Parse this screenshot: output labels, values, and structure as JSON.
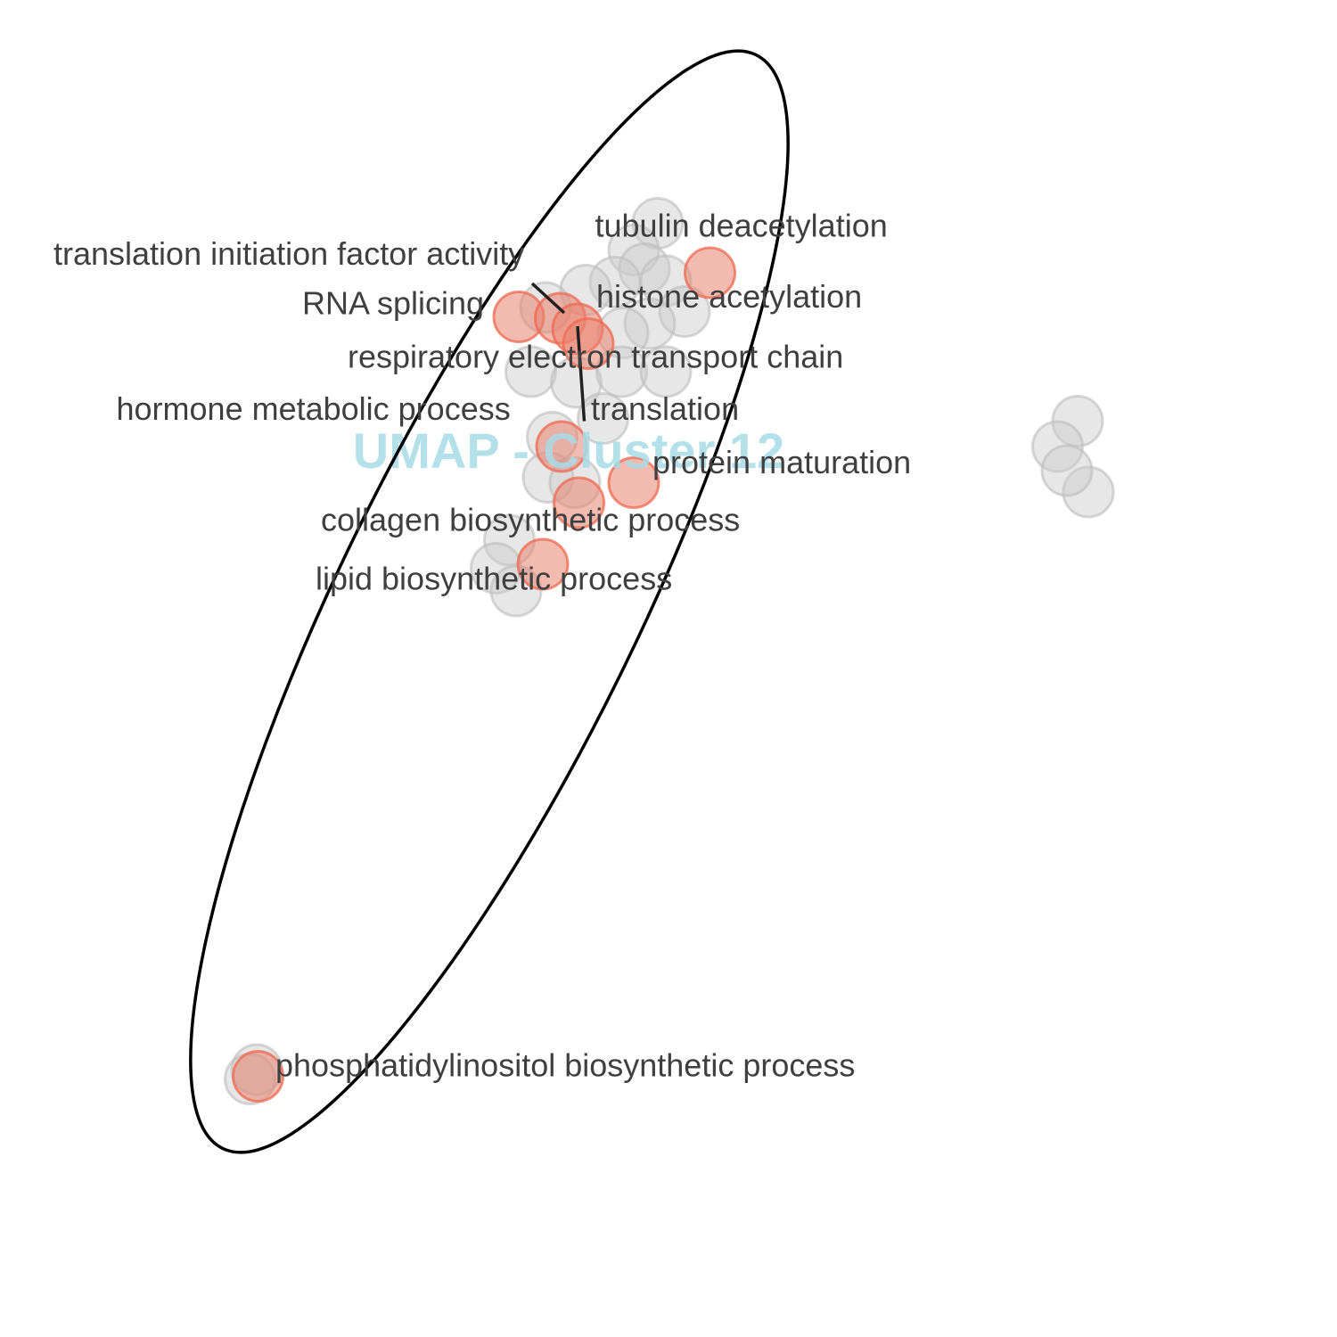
{
  "chart_data": {
    "type": "scatter",
    "title": "UMAP - Cluster 12",
    "xlabel": "",
    "ylabel": "",
    "grid": false,
    "axes_visible": false,
    "xlim": [
      0,
      100
    ],
    "ylim": [
      0,
      100
    ],
    "colors": {
      "highlighted": "#ee6a52",
      "background": "#c9c9c9",
      "title": "#a7dbe6",
      "ellipse": "#000000",
      "label": "#3f3f3f"
    },
    "series": [
      {
        "role": "background",
        "points": [
          {
            "x": 49.2,
            "y": 83.3
          },
          {
            "x": 47.4,
            "y": 81.3
          },
          {
            "x": 48.2,
            "y": 79.9
          },
          {
            "x": 46.0,
            "y": 78.9
          },
          {
            "x": 49.8,
            "y": 79.0
          },
          {
            "x": 51.2,
            "y": 76.7
          },
          {
            "x": 48.6,
            "y": 75.8
          },
          {
            "x": 46.6,
            "y": 75.1
          },
          {
            "x": 43.8,
            "y": 78.3
          },
          {
            "x": 40.8,
            "y": 77.0
          },
          {
            "x": 39.7,
            "y": 72.2
          },
          {
            "x": 43.1,
            "y": 71.4
          },
          {
            "x": 46.5,
            "y": 72.2
          },
          {
            "x": 49.8,
            "y": 72.2
          },
          {
            "x": 45.1,
            "y": 68.7
          },
          {
            "x": 41.3,
            "y": 67.3
          },
          {
            "x": 41.0,
            "y": 64.3
          },
          {
            "x": 43.0,
            "y": 63.9
          },
          {
            "x": 38.1,
            "y": 59.6
          },
          {
            "x": 37.1,
            "y": 57.5
          },
          {
            "x": 38.6,
            "y": 55.8
          },
          {
            "x": 80.6,
            "y": 68.5
          },
          {
            "x": 79.1,
            "y": 66.6
          },
          {
            "x": 81.4,
            "y": 63.2
          },
          {
            "x": 79.8,
            "y": 64.8
          },
          {
            "x": 19.2,
            "y": 20.0
          },
          {
            "x": 18.7,
            "y": 19.3
          }
        ]
      },
      {
        "role": "highlighted",
        "points": [
          {
            "x": 53.1,
            "y": 79.6
          },
          {
            "x": 38.8,
            "y": 76.3
          },
          {
            "x": 41.9,
            "y": 76.2
          },
          {
            "x": 43.2,
            "y": 75.4
          },
          {
            "x": 44.0,
            "y": 74.3
          },
          {
            "x": 42.0,
            "y": 66.6
          },
          {
            "x": 47.4,
            "y": 63.9
          },
          {
            "x": 43.3,
            "y": 62.4
          },
          {
            "x": 40.6,
            "y": 57.8
          },
          {
            "x": 19.3,
            "y": 19.5
          }
        ]
      }
    ],
    "annotations": [
      {
        "text": "tubulin deacetylation",
        "x": 44.5,
        "y": 82.3
      },
      {
        "text": "translation initiation factor activity",
        "x": 4.0,
        "y": 80.2
      },
      {
        "text": "RNA splicing",
        "x": 22.6,
        "y": 76.5
      },
      {
        "text": "histone acetylation",
        "x": 44.6,
        "y": 77.0
      },
      {
        "text": "respiratory electron transport chain",
        "x": 26.0,
        "y": 72.5
      },
      {
        "text": "hormone metabolic process",
        "x": 8.7,
        "y": 68.6
      },
      {
        "text": "translation",
        "x": 44.2,
        "y": 68.6
      },
      {
        "text": "protein maturation",
        "x": 48.8,
        "y": 64.6
      },
      {
        "text": "collagen biosynthetic process",
        "x": 24.0,
        "y": 60.3
      },
      {
        "text": "lipid biosynthetic process",
        "x": 23.6,
        "y": 55.9
      },
      {
        "text": "phosphatidylinositol biosynthetic process",
        "x": 20.6,
        "y": 19.5
      }
    ],
    "leader_lines": [
      {
        "from": {
          "x": 39.8,
          "y": 78.8
        },
        "to": {
          "x": 42.2,
          "y": 76.6
        }
      },
      {
        "from": {
          "x": 43.2,
          "y": 75.6
        },
        "to": {
          "x": 43.7,
          "y": 68.5
        }
      }
    ],
    "ellipse": {
      "cx": 36.6,
      "cy": 55.0,
      "rx": 45.5,
      "ry": 11.2,
      "angle_deg": -64
    }
  }
}
